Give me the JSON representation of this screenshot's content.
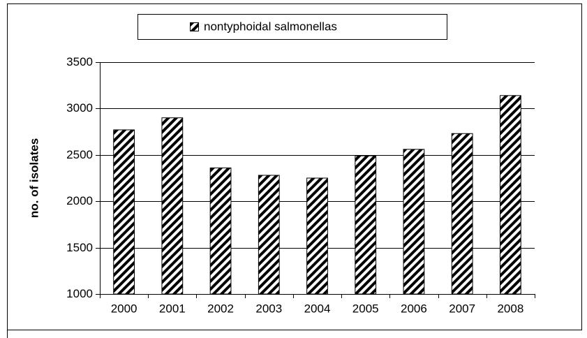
{
  "chart_data": {
    "type": "bar",
    "y_label": "no. of isolates",
    "categories": [
      "2000",
      "2001",
      "2002",
      "2003",
      "2004",
      "2005",
      "2006",
      "2007",
      "2008"
    ],
    "series": [
      {
        "name": "nontyphoidal salmonellas",
        "color": "#000000",
        "values": [
          2770,
          2900,
          2360,
          2280,
          2250,
          2490,
          2560,
          2730,
          3140
        ]
      }
    ],
    "ylim": [
      1000,
      3500
    ],
    "yticks": [
      1000,
      1500,
      2000,
      2500,
      3000,
      3500
    ],
    "grid": true,
    "legend": "top"
  }
}
